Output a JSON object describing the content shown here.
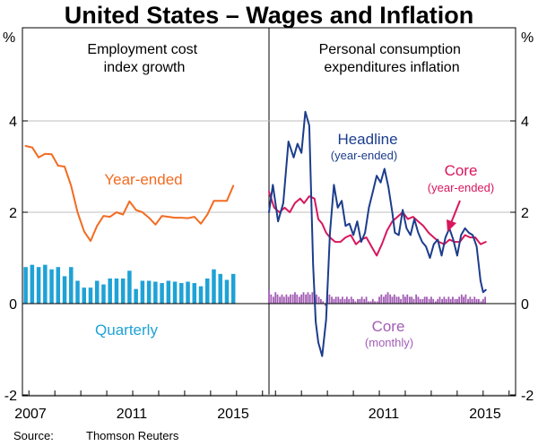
{
  "title": "United States – Wages and Inflation",
  "source_label": "Source:",
  "source_value": "Thomson Reuters",
  "unit": "%",
  "y_ticks": [
    "4",
    "2",
    "0",
    "-2"
  ],
  "colors": {
    "orange": "#F26B21",
    "cyan": "#1FA2D6",
    "navy": "#1C3D8C",
    "crimson": "#D8175D",
    "purple": "#A35DB5",
    "grid": "#bfbfbf"
  },
  "chart_data": [
    {
      "type": "line",
      "title": "Employment cost index growth",
      "x_ticks": [
        "2007",
        "2011",
        "2015"
      ],
      "xlim": [
        2006.75,
        2016.25
      ],
      "ylim": [
        -2,
        5.5
      ],
      "labels": {
        "year_ended": "Year-ended",
        "quarterly": "Quarterly"
      },
      "series": [
        {
          "name": "Year-ended",
          "kind": "line",
          "x": [
            2006.875,
            2007.125,
            2007.375,
            2007.625,
            2007.875,
            2008.125,
            2008.375,
            2008.625,
            2008.875,
            2009.125,
            2009.375,
            2009.625,
            2009.875,
            2010.125,
            2010.375,
            2010.625,
            2010.875,
            2011.125,
            2011.375,
            2011.625,
            2011.875,
            2012.125,
            2012.375,
            2012.625,
            2012.875,
            2013.125,
            2013.375,
            2013.625,
            2013.875,
            2014.125,
            2014.375,
            2014.625,
            2014.875
          ],
          "values": [
            3.45,
            3.42,
            3.2,
            3.28,
            3.27,
            3.02,
            3.0,
            2.58,
            2.0,
            1.58,
            1.37,
            1.7,
            1.92,
            1.9,
            2.0,
            1.95,
            2.24,
            2.05,
            2.0,
            1.88,
            1.73,
            1.92,
            1.9,
            1.88,
            1.88,
            1.87,
            1.9,
            1.75,
            1.95,
            2.25,
            2.25,
            2.25,
            2.58
          ]
        },
        {
          "name": "Quarterly",
          "kind": "bar",
          "x": [
            2006.875,
            2007.125,
            2007.375,
            2007.625,
            2007.875,
            2008.125,
            2008.375,
            2008.625,
            2008.875,
            2009.125,
            2009.375,
            2009.625,
            2009.875,
            2010.125,
            2010.375,
            2010.625,
            2010.875,
            2011.125,
            2011.375,
            2011.625,
            2011.875,
            2012.125,
            2012.375,
            2012.625,
            2012.875,
            2013.125,
            2013.375,
            2013.625,
            2013.875,
            2014.125,
            2014.375,
            2014.625,
            2014.875
          ],
          "values": [
            0.8,
            0.85,
            0.8,
            0.85,
            0.75,
            0.8,
            0.6,
            0.8,
            0.5,
            0.35,
            0.35,
            0.5,
            0.42,
            0.55,
            0.55,
            0.55,
            0.72,
            0.32,
            0.5,
            0.5,
            0.48,
            0.45,
            0.5,
            0.48,
            0.45,
            0.48,
            0.45,
            0.38,
            0.55,
            0.75,
            0.65,
            0.52,
            0.65
          ]
        }
      ]
    },
    {
      "type": "line",
      "title": "Personal consumption expenditures inflation",
      "x_ticks": [
        "2011",
        "2015"
      ],
      "xlim": [
        2006.75,
        2016.25
      ],
      "ylim": [
        -2,
        5.5
      ],
      "labels": {
        "headline": "Headline",
        "headline_sub": "(year-ended)",
        "core": "Core",
        "core_sub": "(year-ended)",
        "core_monthly": "Core",
        "core_monthly_sub": "(monthly)"
      },
      "series": [
        {
          "name": "Headline (year-ended)",
          "kind": "line",
          "x": [
            2006.75,
            2006.9,
            2007.1,
            2007.3,
            2007.5,
            2007.7,
            2007.85,
            2008.0,
            2008.15,
            2008.3,
            2008.45,
            2008.55,
            2008.65,
            2008.8,
            2008.95,
            2009.1,
            2009.25,
            2009.4,
            2009.55,
            2009.7,
            2009.85,
            2010.0,
            2010.15,
            2010.3,
            2010.45,
            2010.6,
            2010.75,
            2010.9,
            2011.05,
            2011.2,
            2011.35,
            2011.5,
            2011.6,
            2011.75,
            2011.9,
            2012.05,
            2012.2,
            2012.35,
            2012.5,
            2012.65,
            2012.8,
            2012.95,
            2013.1,
            2013.25,
            2013.4,
            2013.55,
            2013.7,
            2013.85,
            2014.0,
            2014.15,
            2014.3,
            2014.45,
            2014.6,
            2014.75,
            2014.9,
            2015.0,
            2015.1
          ],
          "values": [
            2.0,
            2.6,
            1.8,
            2.2,
            3.55,
            3.2,
            3.5,
            3.3,
            4.2,
            3.9,
            0.85,
            -0.4,
            -0.85,
            -1.15,
            -0.35,
            1.55,
            2.6,
            2.1,
            2.25,
            1.7,
            1.75,
            1.5,
            1.8,
            1.35,
            1.55,
            2.1,
            2.45,
            2.8,
            2.65,
            2.95,
            2.55,
            2.0,
            1.55,
            1.5,
            2.05,
            1.65,
            1.5,
            1.85,
            1.55,
            1.35,
            1.25,
            1.0,
            1.3,
            1.4,
            1.05,
            1.45,
            1.65,
            1.4,
            1.05,
            1.5,
            1.65,
            1.55,
            1.5,
            1.25,
            0.5,
            0.25,
            0.3
          ]
        },
        {
          "name": "Core (year-ended)",
          "kind": "line",
          "x": [
            2006.75,
            2006.95,
            2007.15,
            2007.35,
            2007.55,
            2007.75,
            2007.95,
            2008.1,
            2008.3,
            2008.5,
            2008.65,
            2008.8,
            2008.95,
            2009.1,
            2009.3,
            2009.5,
            2009.7,
            2009.9,
            2010.1,
            2010.3,
            2010.5,
            2010.7,
            2010.9,
            2011.1,
            2011.3,
            2011.5,
            2011.7,
            2011.9,
            2012.1,
            2012.3,
            2012.5,
            2012.7,
            2012.9,
            2013.1,
            2013.3,
            2013.5,
            2013.7,
            2013.9,
            2014.1,
            2014.3,
            2014.5,
            2014.7,
            2014.9,
            2015.1
          ],
          "values": [
            2.45,
            2.1,
            2.0,
            2.1,
            2.0,
            2.2,
            2.3,
            2.2,
            2.35,
            2.3,
            1.85,
            1.75,
            1.55,
            1.45,
            1.35,
            1.35,
            1.45,
            1.5,
            1.3,
            1.4,
            1.45,
            1.25,
            1.05,
            1.3,
            1.6,
            1.8,
            1.9,
            2.0,
            1.85,
            1.9,
            1.8,
            1.7,
            1.55,
            1.45,
            1.35,
            1.3,
            1.4,
            1.35,
            1.35,
            1.5,
            1.45,
            1.45,
            1.3,
            1.35
          ]
        },
        {
          "name": "Core (monthly)",
          "kind": "bar",
          "x": [
            2006.75,
            2006.83,
            2006.92,
            2007.0,
            2007.08,
            2007.17,
            2007.25,
            2007.33,
            2007.42,
            2007.5,
            2007.58,
            2007.67,
            2007.75,
            2007.83,
            2007.92,
            2008.0,
            2008.08,
            2008.17,
            2008.25,
            2008.33,
            2008.42,
            2008.5,
            2008.58,
            2008.67,
            2008.75,
            2008.83,
            2008.92,
            2009.0,
            2009.08,
            2009.17,
            2009.25,
            2009.33,
            2009.42,
            2009.5,
            2009.58,
            2009.67,
            2009.75,
            2009.83,
            2009.92,
            2010.0,
            2010.08,
            2010.17,
            2010.25,
            2010.33,
            2010.42,
            2010.5,
            2010.58,
            2010.67,
            2010.75,
            2010.83,
            2010.92,
            2011.0,
            2011.08,
            2011.17,
            2011.25,
            2011.33,
            2011.42,
            2011.5,
            2011.58,
            2011.67,
            2011.75,
            2011.83,
            2011.92,
            2012.0,
            2012.08,
            2012.17,
            2012.25,
            2012.33,
            2012.42,
            2012.5,
            2012.58,
            2012.67,
            2012.75,
            2012.83,
            2012.92,
            2013.0,
            2013.08,
            2013.17,
            2013.25,
            2013.33,
            2013.42,
            2013.5,
            2013.58,
            2013.67,
            2013.75,
            2013.83,
            2013.92,
            2014.0,
            2014.08,
            2014.17,
            2014.25,
            2014.33,
            2014.42,
            2014.5,
            2014.58,
            2014.67,
            2014.75,
            2014.83,
            2014.92,
            2015.0,
            2015.08
          ],
          "values": [
            0.3,
            0.2,
            0.15,
            0.25,
            0.2,
            0.15,
            0.2,
            0.15,
            0.2,
            0.15,
            0.2,
            0.2,
            0.25,
            0.2,
            0.15,
            0.2,
            0.25,
            0.2,
            0.25,
            0.2,
            0.25,
            0.3,
            0.2,
            0.15,
            0.1,
            0.05,
            -0.05,
            0.15,
            0.2,
            0.15,
            0.1,
            0.15,
            0.15,
            0.1,
            0.15,
            0.1,
            0.15,
            0.1,
            0.15,
            0.1,
            0.05,
            0.1,
            0.1,
            0.15,
            0.1,
            0.15,
            0.05,
            0.05,
            0.1,
            0.05,
            0.05,
            0.15,
            0.2,
            0.15,
            0.2,
            0.25,
            0.2,
            0.15,
            0.2,
            0.15,
            0.15,
            0.1,
            0.2,
            0.15,
            0.2,
            0.15,
            0.15,
            0.1,
            0.2,
            0.15,
            0.1,
            0.1,
            0.15,
            0.15,
            0.1,
            0.15,
            0.1,
            0.05,
            0.1,
            0.15,
            0.1,
            0.15,
            0.1,
            0.15,
            0.1,
            0.15,
            0.1,
            0.1,
            0.15,
            0.2,
            0.15,
            0.2,
            0.1,
            0.15,
            0.1,
            0.15,
            0.1,
            0.1,
            0.05,
            0.1,
            0.15
          ]
        }
      ]
    }
  ]
}
